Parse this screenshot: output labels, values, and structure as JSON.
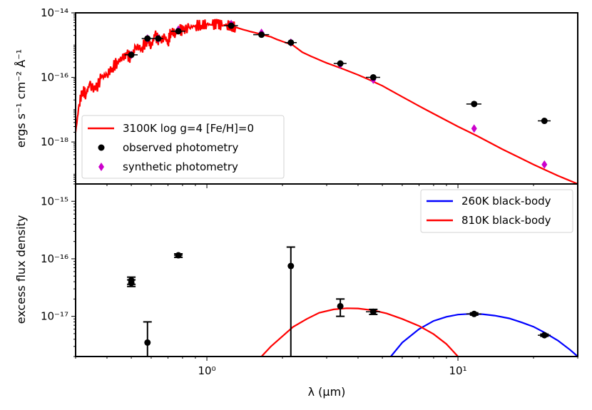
{
  "chart_data": [
    {
      "type": "line",
      "panel": "top",
      "xscale": "log",
      "yscale": "log",
      "xlim": [
        0.3,
        30
      ],
      "ylim": [
        5e-20,
        1e-14
      ],
      "ylabel": "ergs s⁻¹ cm⁻² Å⁻¹",
      "yticks": [
        {
          "value": 1e-14,
          "label": "10⁻¹⁴"
        },
        {
          "value": 1e-16,
          "label": "10⁻¹⁶"
        },
        {
          "value": 1e-18,
          "label": "10⁻¹⁸"
        }
      ],
      "colors": {
        "model": "#ff0000",
        "observed": "#000000",
        "synthetic": "#cc00cc"
      },
      "legend": {
        "placement": "lower-left",
        "entries": [
          "3100K log g=4 [Fe/H]=0",
          "observed photometry",
          "synthetic photometry"
        ]
      },
      "model_spectrum": {
        "name": "3100K log g=4 [Fe/H]=0",
        "x": [
          0.3,
          0.31,
          0.32,
          0.33,
          0.34,
          0.36,
          0.38,
          0.4,
          0.42,
          0.44,
          0.46,
          0.48,
          0.5,
          0.52,
          0.55,
          0.58,
          0.6,
          0.62,
          0.65,
          0.68,
          0.7,
          0.72,
          0.75,
          0.78,
          0.8,
          0.85,
          0.9,
          0.95,
          1.0,
          1.05,
          1.1,
          1.15,
          1.2,
          1.25,
          1.3,
          1.4,
          1.5,
          1.6,
          1.7,
          1.8,
          1.9,
          2.0,
          2.2,
          2.4,
          2.6,
          2.8,
          3.0,
          3.5,
          4.0,
          4.5,
          5.0,
          6.0,
          7.0,
          8.0,
          10.0,
          12.0,
          15.0,
          20.0,
          25.0,
          30.0
        ],
        "y": [
          2e-18,
          1.5e-17,
          4e-17,
          3e-17,
          6e-17,
          4e-17,
          1e-16,
          1.2e-16,
          2e-16,
          3e-16,
          4e-16,
          5e-16,
          4e-16,
          9e-16,
          8e-16,
          1.5e-15,
          9e-16,
          2e-15,
          1.3e-15,
          1.8e-15,
          1.2e-15,
          2.8e-15,
          2.2e-15,
          3e-15,
          2.8e-15,
          3.5e-15,
          4e-15,
          4.2e-15,
          4.5e-15,
          4.2e-15,
          4.6e-15,
          4e-15,
          4.3e-15,
          3.8e-15,
          3.6e-15,
          3e-15,
          2.6e-15,
          2.3e-15,
          2e-15,
          1.8e-15,
          1.5e-15,
          1.3e-15,
          1e-15,
          6e-16,
          4.5e-16,
          3.5e-16,
          2.8e-16,
          1.8e-16,
          1.2e-16,
          8e-17,
          5.5e-17,
          2.5e-17,
          1.3e-17,
          7.5e-18,
          3e-18,
          1.5e-18,
          6e-19,
          2e-19,
          9e-20,
          5e-20
        ]
      },
      "observed_photometry": {
        "name": "observed photometry",
        "x": [
          0.5,
          0.58,
          0.64,
          0.77,
          1.25,
          1.65,
          2.16,
          3.4,
          4.6,
          11.6,
          22.1
        ],
        "y": [
          5e-16,
          1.6e-15,
          1.6e-15,
          2.7e-15,
          4e-15,
          2.1e-15,
          1.2e-15,
          2.7e-16,
          1e-16,
          1.5e-17,
          4.5e-18
        ],
        "xerr": [
          0.03,
          0.03,
          0.03,
          0.05,
          0.08,
          0.12,
          0.12,
          0.2,
          0.3,
          0.8,
          1.3
        ]
      },
      "synthetic_photometry": {
        "name": "synthetic photometry",
        "x": [
          0.5,
          0.58,
          0.64,
          0.77,
          1.25,
          1.65,
          2.16,
          3.4,
          4.6,
          11.6,
          22.1
        ],
        "y": [
          5e-16,
          1.6e-15,
          1.6e-15,
          3e-15,
          4.5e-15,
          2.4e-15,
          1.2e-15,
          2.5e-16,
          8.5e-17,
          2.6e-18,
          2e-19
        ]
      }
    },
    {
      "type": "line",
      "panel": "bottom",
      "xscale": "log",
      "yscale": "log",
      "xlim": [
        0.3,
        30
      ],
      "ylim": [
        2e-18,
        2e-15
      ],
      "xlabel": "λ (μm)",
      "ylabel": "excess flux density",
      "xticks": [
        {
          "value": 1,
          "label": "10⁰"
        },
        {
          "value": 10,
          "label": "10¹"
        }
      ],
      "yticks": [
        {
          "value": 1e-15,
          "label": "10⁻¹⁵"
        },
        {
          "value": 1e-16,
          "label": "10⁻¹⁶"
        },
        {
          "value": 1e-17,
          "label": "10⁻¹⁷"
        }
      ],
      "colors": {
        "bb260": "#0000ff",
        "bb810": "#ff0000",
        "points": "#000000"
      },
      "legend": {
        "placement": "upper-right",
        "entries": [
          "260K black-body",
          "810K black-body"
        ]
      },
      "series": [
        {
          "name": "260K black-body",
          "x": [
            5.4,
            6,
            7,
            8,
            9,
            10,
            11,
            11.6,
            12.5,
            14,
            16,
            18,
            20,
            22,
            25,
            28,
            30
          ],
          "y": [
            2e-18,
            3.5e-18,
            6e-18,
            8.3e-18,
            9.8e-18,
            1.07e-17,
            1.1e-17,
            1.1e-17,
            1.09e-17,
            1.03e-17,
            9.2e-18,
            7.8e-18,
            6.6e-18,
            5.3e-18,
            3.8e-18,
            2.6e-18,
            2e-18
          ]
        },
        {
          "name": "810K black-body",
          "x": [
            1.65,
            1.8,
            2.0,
            2.2,
            2.5,
            2.8,
            3.2,
            3.6,
            4.0,
            4.6,
            5.2,
            6.0,
            7.0,
            8.0,
            9.0,
            10.0
          ],
          "y": [
            2e-18,
            3e-18,
            4.5e-18,
            6.5e-18,
            9e-18,
            1.15e-17,
            1.32e-17,
            1.38e-17,
            1.37e-17,
            1.27e-17,
            1.12e-17,
            9e-18,
            6.8e-18,
            4.9e-18,
            3.3e-18,
            2e-18
          ]
        }
      ],
      "excess_points": {
        "x": [
          0.5,
          0.5,
          0.58,
          0.77,
          2.16,
          3.4,
          4.6,
          11.6,
          22.1
        ],
        "y": [
          4.2e-17,
          3.8e-17,
          3.5e-18,
          1.15e-16,
          7.5e-17,
          1.5e-17,
          1.2e-17,
          1.1e-17,
          4.7e-18
        ],
        "ylow": [
          3.6e-17,
          3.3e-17,
          1.5e-18,
          1.06e-16,
          2e-18,
          1e-17,
          1.08e-17,
          1.05e-17,
          4.5e-18
        ],
        "yhigh": [
          4.8e-17,
          4.3e-17,
          8e-18,
          1.22e-16,
          1.6e-16,
          2e-17,
          1.32e-17,
          1.15e-17,
          4.9e-18
        ],
        "xerr": [
          0,
          0,
          0,
          0.03,
          0,
          0,
          0.3,
          0.8,
          1.3
        ]
      }
    }
  ]
}
